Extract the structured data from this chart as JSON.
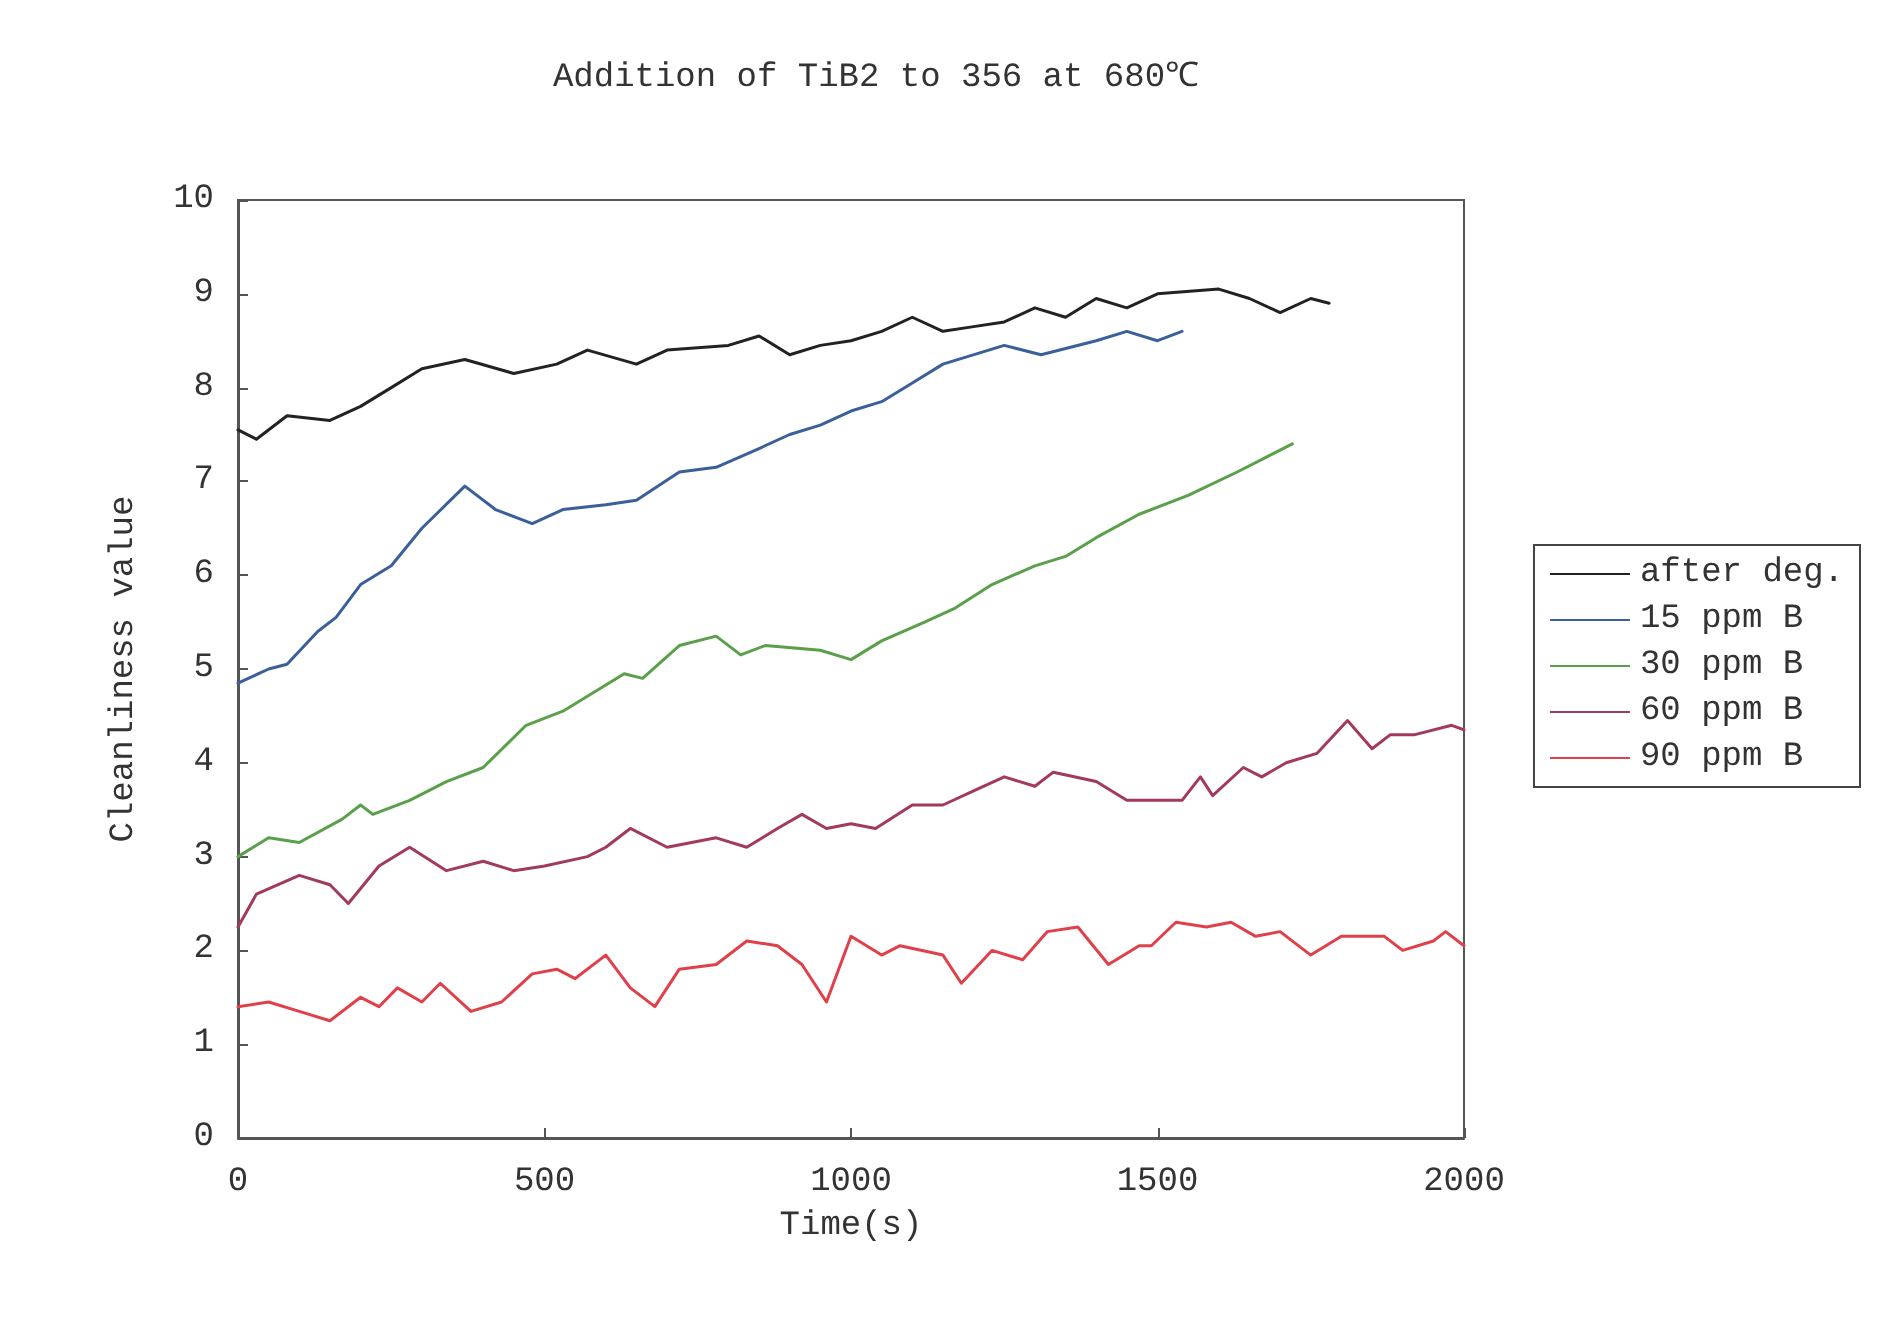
{
  "chart_data": {
    "type": "line",
    "title": "Addition of TiB2 to 356 at 680℃",
    "xlabel": "Time(s)",
    "ylabel": "Cleanliness value",
    "xlim": [
      0,
      2000
    ],
    "xticks": [
      0,
      500,
      1000,
      1500,
      2000
    ],
    "ylim": [
      0,
      10
    ],
    "yticks": [
      0,
      1,
      2,
      3,
      4,
      5,
      6,
      7,
      8,
      9,
      10
    ],
    "grid": false,
    "legend": "right",
    "marker": "none",
    "line_style": "solid",
    "series": [
      {
        "name": "after deg.",
        "color": "#222222",
        "x": [
          0,
          30,
          80,
          150,
          200,
          250,
          300,
          370,
          450,
          520,
          570,
          650,
          700,
          800,
          850,
          900,
          950,
          1000,
          1050,
          1100,
          1150,
          1200,
          1250,
          1300,
          1350,
          1400,
          1450,
          1500,
          1600,
          1650,
          1700,
          1750,
          1780
        ],
        "values": [
          7.55,
          7.45,
          7.7,
          7.65,
          7.8,
          8.0,
          8.2,
          8.3,
          8.15,
          8.25,
          8.4,
          8.25,
          8.4,
          8.45,
          8.55,
          8.35,
          8.45,
          8.5,
          8.6,
          8.75,
          8.6,
          8.65,
          8.7,
          8.85,
          8.75,
          8.95,
          8.85,
          9.0,
          9.05,
          8.95,
          8.8,
          8.95,
          8.9
        ]
      },
      {
        "name": "15 ppm B",
        "color": "#3a5f9a",
        "x": [
          0,
          50,
          80,
          130,
          160,
          200,
          250,
          300,
          370,
          420,
          480,
          530,
          600,
          650,
          720,
          780,
          850,
          900,
          950,
          1000,
          1050,
          1100,
          1150,
          1250,
          1310,
          1400,
          1450,
          1500,
          1540
        ],
        "values": [
          4.85,
          5.0,
          5.05,
          5.4,
          5.55,
          5.9,
          6.1,
          6.5,
          6.95,
          6.7,
          6.55,
          6.7,
          6.75,
          6.8,
          7.1,
          7.15,
          7.35,
          7.5,
          7.6,
          7.75,
          7.85,
          8.05,
          8.25,
          8.45,
          8.35,
          8.5,
          8.6,
          8.5,
          8.6
        ]
      },
      {
        "name": "30 ppm B",
        "color": "#5aa04a",
        "x": [
          0,
          50,
          100,
          170,
          200,
          220,
          280,
          340,
          400,
          470,
          530,
          580,
          630,
          660,
          720,
          780,
          820,
          860,
          950,
          1000,
          1050,
          1120,
          1170,
          1230,
          1300,
          1350,
          1400,
          1470,
          1550,
          1630,
          1720
        ],
        "values": [
          3.0,
          3.2,
          3.15,
          3.4,
          3.55,
          3.45,
          3.6,
          3.8,
          3.95,
          4.4,
          4.55,
          4.75,
          4.95,
          4.9,
          5.25,
          5.35,
          5.15,
          5.25,
          5.2,
          5.1,
          5.3,
          5.5,
          5.65,
          5.9,
          6.1,
          6.2,
          6.4,
          6.65,
          6.85,
          7.1,
          7.4
        ]
      },
      {
        "name": "60 ppm B",
        "color": "#a23a5a",
        "x": [
          0,
          30,
          100,
          150,
          180,
          230,
          280,
          340,
          400,
          450,
          500,
          570,
          600,
          640,
          700,
          780,
          830,
          880,
          920,
          960,
          1000,
          1040,
          1100,
          1150,
          1200,
          1250,
          1300,
          1330,
          1400,
          1450,
          1520,
          1540,
          1570,
          1590,
          1640,
          1670,
          1710,
          1760,
          1810,
          1850,
          1880,
          1920,
          1980,
          2000
        ],
        "values": [
          2.25,
          2.6,
          2.8,
          2.7,
          2.5,
          2.9,
          3.1,
          2.85,
          2.95,
          2.85,
          2.9,
          3.0,
          3.1,
          3.3,
          3.1,
          3.2,
          3.1,
          3.3,
          3.45,
          3.3,
          3.35,
          3.3,
          3.55,
          3.55,
          3.7,
          3.85,
          3.75,
          3.9,
          3.8,
          3.6,
          3.6,
          3.6,
          3.85,
          3.65,
          3.95,
          3.85,
          4.0,
          4.1,
          4.45,
          4.15,
          4.3,
          4.3,
          4.4,
          4.35
        ]
      },
      {
        "name": "90 ppm B",
        "color": "#e0404a",
        "x": [
          0,
          50,
          100,
          150,
          200,
          230,
          260,
          300,
          330,
          380,
          430,
          480,
          520,
          550,
          600,
          640,
          680,
          720,
          780,
          830,
          880,
          920,
          960,
          1000,
          1050,
          1080,
          1150,
          1180,
          1230,
          1280,
          1320,
          1370,
          1420,
          1470,
          1490,
          1530,
          1580,
          1620,
          1660,
          1700,
          1750,
          1800,
          1870,
          1900,
          1950,
          1970,
          2000
        ],
        "values": [
          1.4,
          1.45,
          1.35,
          1.25,
          1.5,
          1.4,
          1.6,
          1.45,
          1.65,
          1.35,
          1.45,
          1.75,
          1.8,
          1.7,
          1.95,
          1.6,
          1.4,
          1.8,
          1.85,
          2.1,
          2.05,
          1.85,
          1.45,
          2.15,
          1.95,
          2.05,
          1.95,
          1.65,
          2.0,
          1.9,
          2.2,
          2.25,
          1.85,
          2.05,
          2.05,
          2.3,
          2.25,
          2.3,
          2.15,
          2.2,
          1.95,
          2.15,
          2.15,
          2.0,
          2.1,
          2.2,
          2.05
        ]
      }
    ]
  }
}
